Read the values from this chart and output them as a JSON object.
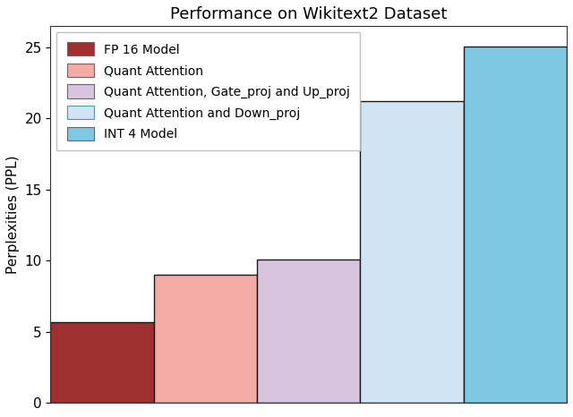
{
  "title": "Performance on Wikitext2 Dataset",
  "ylabel": "Perplexities (PPL)",
  "categories": [
    "FP 16 Model",
    "Quant Attention",
    "Quant Attention, Gate_proj and Up_proj",
    "Quant Attention and Down_proj",
    "INT 4 Model"
  ],
  "values": [
    5.7,
    9.0,
    10.1,
    21.2,
    25.1
  ],
  "bar_colors": [
    "#a03030",
    "#f4aba5",
    "#d8c4dc",
    "#d0e4f4",
    "#7ec8e3"
  ],
  "bar_edge_colors": [
    "#1a1a1a",
    "#1a1a1a",
    "#1a1a1a",
    "#1a1a1a",
    "#1a1a1a"
  ],
  "ylim": [
    0,
    26.5
  ],
  "yticks": [
    0,
    5,
    10,
    15,
    20,
    25
  ],
  "legend_labels": [
    "FP 16 Model",
    "Quant Attention",
    "Quant Attention, Gate_proj and Up_proj",
    "Quant Attention and Down_proj",
    "INT 4 Model"
  ],
  "legend_colors": [
    "#a03030",
    "#f4aba5",
    "#d8c4dc",
    "#d0e4f4",
    "#7ec8e3"
  ],
  "legend_edge_colors": [
    "#555555",
    "#555555",
    "#555555",
    "#3399cc",
    "#555555"
  ],
  "figsize": [
    6.4,
    4.66
  ],
  "dpi": 100
}
